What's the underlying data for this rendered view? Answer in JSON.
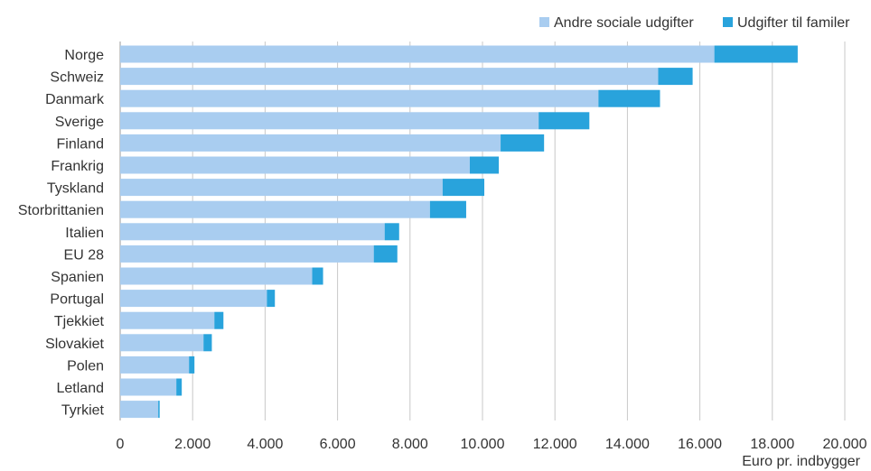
{
  "chart_data": {
    "type": "bar",
    "orientation": "horizontal",
    "stacked": true,
    "categories": [
      "Norge",
      "Schweiz",
      "Danmark",
      "Sverige",
      "Finland",
      "Frankrig",
      "Tyskland",
      "Storbrittanien",
      "Italien",
      "EU 28",
      "Spanien",
      "Portugal",
      "Tjekkiet",
      "Slovakiet",
      "Polen",
      "Letland",
      "Tyrkiet"
    ],
    "series": [
      {
        "name": "Andre sociale udgifter",
        "color": "#a9cdf0",
        "values": [
          16400,
          14850,
          13200,
          11550,
          10500,
          9650,
          8900,
          8550,
          7300,
          7000,
          5300,
          4050,
          2600,
          2300,
          1900,
          1550,
          1050
        ]
      },
      {
        "name": "Udgifter til familer",
        "color": "#29a3dc",
        "values": [
          2300,
          950,
          1700,
          1400,
          1200,
          800,
          1150,
          1000,
          400,
          650,
          300,
          220,
          250,
          230,
          150,
          150,
          40
        ]
      }
    ],
    "xlim": [
      0,
      20000
    ],
    "xticks": [
      0,
      2000,
      4000,
      6000,
      8000,
      10000,
      12000,
      14000,
      16000,
      18000,
      20000
    ],
    "xtick_labels": [
      "0",
      "2.000",
      "4.000",
      "6.000",
      "8.000",
      "10.000",
      "12.000",
      "14.000",
      "16.000",
      "18.000",
      "20.000"
    ],
    "xlabel": "Euro pr. indbygger",
    "ylabel": "",
    "title": "",
    "grid": "vertical",
    "legend": "top-right"
  }
}
